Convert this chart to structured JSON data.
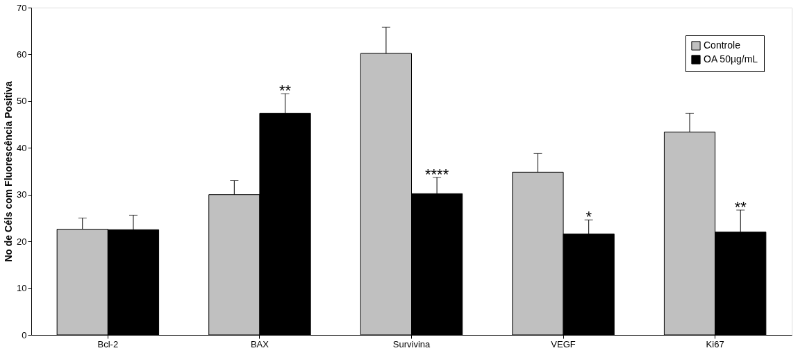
{
  "chart_data": {
    "type": "bar",
    "ylabel": "No de Céls com Fluorescência Positiva",
    "categories": [
      "Bcl-2",
      "BAX",
      "Survivina",
      "VEGF",
      "Ki67"
    ],
    "series": [
      {
        "name": "Controle",
        "color": "#c0c0c0",
        "values": [
          22.6,
          30.0,
          60.2,
          34.8,
          43.4
        ],
        "errors": [
          [
            22.6,
            25.0
          ],
          [
            30.0,
            33.0
          ],
          [
            60.2,
            65.8
          ],
          [
            34.8,
            38.8
          ],
          [
            43.4,
            47.4
          ]
        ]
      },
      {
        "name": "OA 50µg/mL",
        "color": "#000000",
        "values": [
          22.5,
          47.4,
          30.2,
          21.6,
          22.0
        ],
        "errors": [
          [
            22.5,
            25.6
          ],
          [
            47.4,
            51.6
          ],
          [
            30.2,
            33.7
          ],
          [
            21.6,
            24.6
          ],
          [
            22.0,
            26.7
          ]
        ]
      }
    ],
    "ylim": [
      0,
      70
    ],
    "yticks": [
      0,
      10,
      20,
      30,
      40,
      50,
      60,
      70
    ],
    "grid": false,
    "legend": "top right",
    "annotations": [
      {
        "text": "**",
        "x": "BAX",
        "y": 47.4
      },
      {
        "text": "****",
        "x": "Survivina",
        "y": 30.2
      },
      {
        "text": "*",
        "x": "VEGF",
        "y": 21.6
      },
      {
        "text": "**",
        "x": "Ki67",
        "y": 22.0
      }
    ]
  }
}
